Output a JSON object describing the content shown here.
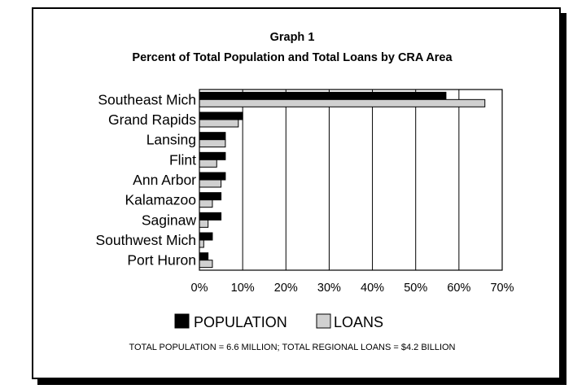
{
  "chart_data": {
    "type": "bar",
    "orientation": "horizontal",
    "title": "Graph 1",
    "subtitle": "Percent of Total Population and Total Loans by CRA Area",
    "categories": [
      "Southeast Mich",
      "Grand Rapids",
      "Lansing",
      "Flint",
      "Ann Arbor",
      "Kalamazoo",
      "Saginaw",
      "Southwest Mich",
      "Port Huron"
    ],
    "series": [
      {
        "name": "POPULATION",
        "color": "#000000",
        "values": [
          57,
          10,
          6,
          6,
          6,
          5,
          5,
          3,
          2
        ]
      },
      {
        "name": "LOANS",
        "color": "#d0d0d0",
        "values": [
          66,
          9,
          6,
          4,
          5,
          3,
          2,
          1,
          3
        ]
      }
    ],
    "xlim": [
      0,
      70
    ],
    "xticks": [
      0,
      10,
      20,
      30,
      40,
      50,
      60,
      70
    ],
    "tick_labels": [
      "0%",
      "10%",
      "20%",
      "30%",
      "40%",
      "50%",
      "60%",
      "70%"
    ],
    "grid": "vertical",
    "legend": "bottom",
    "footnote": "TOTAL POPULATION = 6.6 MILLION;  TOTAL REGIONAL LOANS = $4.2 BILLION"
  }
}
